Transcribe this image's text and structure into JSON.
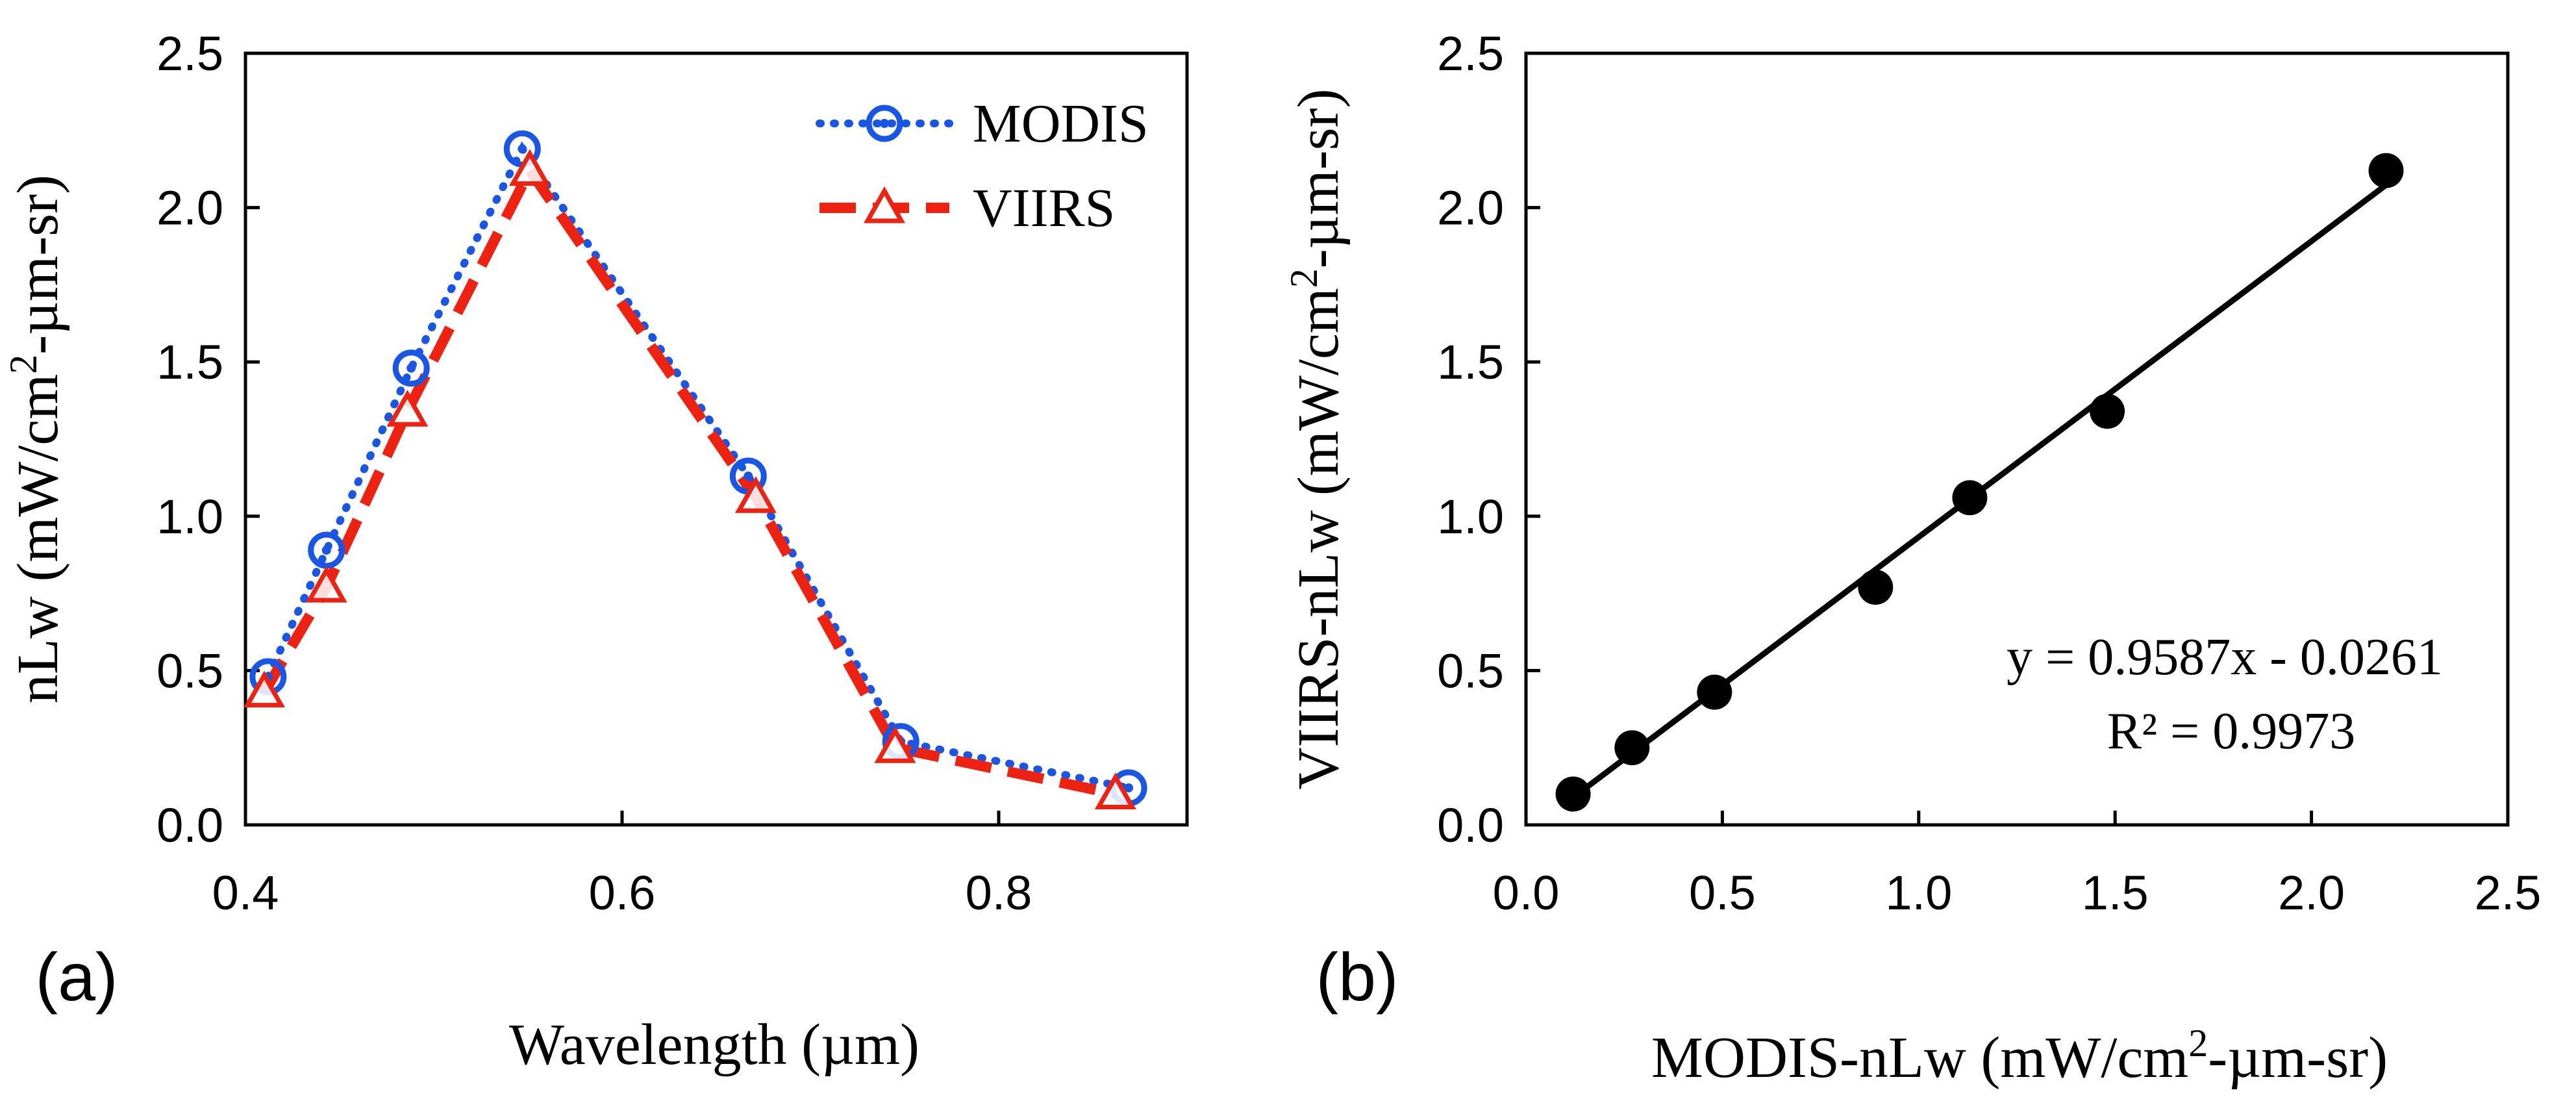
{
  "chart_data": [
    {
      "type": "line",
      "panel_label": "(a)",
      "xlabel": "Wavelength (µm)",
      "ylabel_main": "nLw (mW/cm",
      "ylabel_sup": "2",
      "ylabel_tail": "-µm-sr)",
      "xlim": [
        0.4,
        0.9
      ],
      "ylim": [
        0.0,
        2.5
      ],
      "xticks": [
        0.4,
        0.6,
        0.8
      ],
      "xtick_labels": [
        "0.4",
        "0.6",
        "0.8"
      ],
      "yticks": [
        0.0,
        0.5,
        1.0,
        1.5,
        2.0,
        2.5
      ],
      "ytick_labels": [
        "0.0",
        "0.5",
        "1.0",
        "1.5",
        "2.0",
        "2.5"
      ],
      "legend_position": "top-right",
      "series": [
        {
          "name": "MODIS",
          "color": "#1a56e6",
          "marker": "circle-dot",
          "line_style": "dotted",
          "x": [
            0.412,
            0.443,
            0.488,
            0.547,
            0.667,
            0.748,
            0.869
          ],
          "y": [
            0.48,
            0.89,
            1.48,
            2.19,
            1.13,
            0.27,
            0.12
          ]
        },
        {
          "name": "VIIRS",
          "color": "#ee2211",
          "marker": "triangle",
          "line_style": "dashed",
          "x": [
            0.41,
            0.443,
            0.486,
            0.551,
            0.671,
            0.745,
            0.862
          ],
          "y": [
            0.43,
            0.77,
            1.34,
            2.12,
            1.06,
            0.25,
            0.1
          ]
        }
      ]
    },
    {
      "type": "scatter",
      "panel_label": "(b)",
      "xlabel_main": "MODIS-nLw (mW/cm",
      "xlabel_sup": "2",
      "xlabel_tail": "-µm-sr)",
      "ylabel_main": "VIIRS-nLw (mW/cm",
      "ylabel_sup": "2",
      "ylabel_tail": "-µm-sr)",
      "xlim": [
        0.0,
        2.5
      ],
      "ylim": [
        0.0,
        2.5
      ],
      "xticks": [
        0.0,
        0.5,
        1.0,
        1.5,
        2.0,
        2.5
      ],
      "xtick_labels": [
        "0.0",
        "0.5",
        "1.0",
        "1.5",
        "2.0",
        "2.5"
      ],
      "yticks": [
        0.0,
        0.5,
        1.0,
        1.5,
        2.0,
        2.5
      ],
      "ytick_labels": [
        "0.0",
        "0.5",
        "1.0",
        "1.5",
        "2.0",
        "2.5"
      ],
      "points": {
        "x": [
          0.12,
          0.27,
          0.48,
          0.89,
          1.13,
          1.48,
          2.19
        ],
        "y": [
          0.1,
          0.25,
          0.43,
          0.77,
          1.06,
          1.34,
          2.12
        ]
      },
      "point_color": "#000000",
      "fit": {
        "slope": 0.9587,
        "intercept": -0.0261,
        "x_range": [
          0.1,
          2.2
        ]
      },
      "equation_text": "y = 0.9587x - 0.0261",
      "r2_text": "R² = 0.9973"
    }
  ]
}
